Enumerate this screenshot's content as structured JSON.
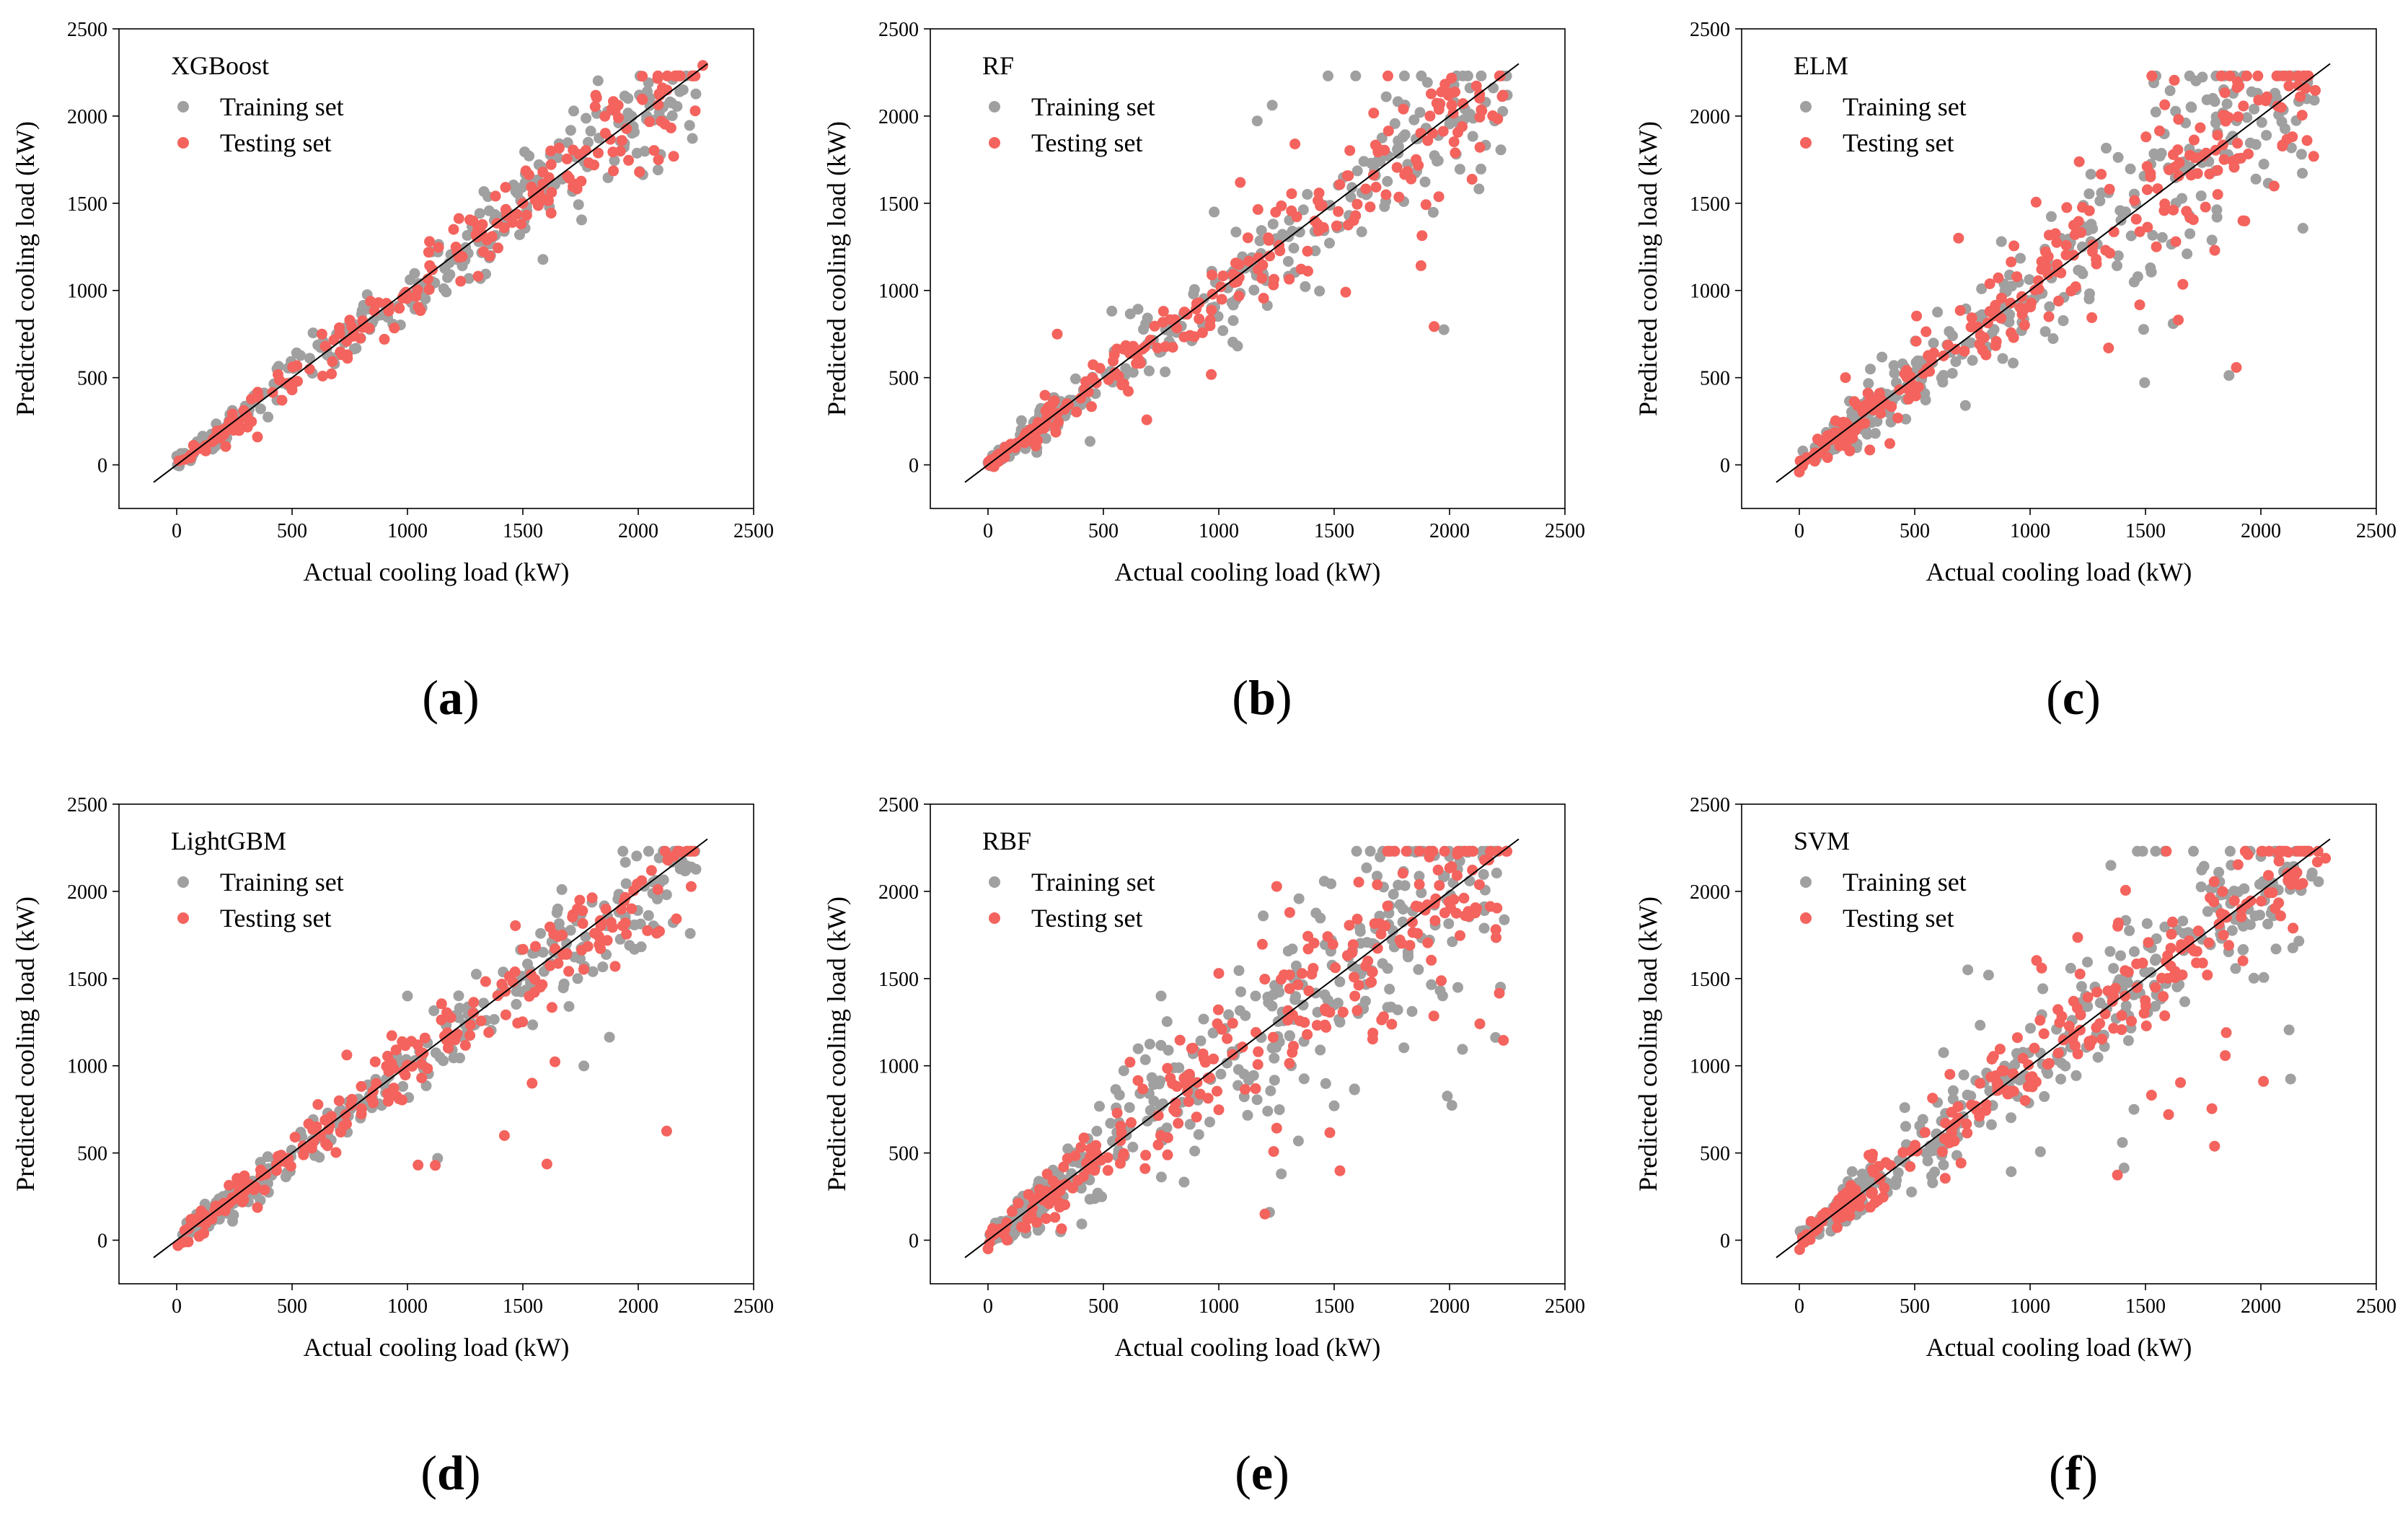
{
  "figure": {
    "colors": {
      "training": "#a0a0a0",
      "testing": "#f4635d",
      "line": "#000000"
    }
  },
  "chart_data": [
    {
      "type": "scatter",
      "panel": "(a)",
      "panel_letter": "a",
      "model": "XGBoost",
      "xlabel": "Actual cooling load (kW)",
      "ylabel": "Predicted cooling load (kW)",
      "xlim": [
        -250,
        2500
      ],
      "ylim": [
        -250,
        2500
      ],
      "xticks": [
        0,
        500,
        1000,
        1500,
        2000,
        2500
      ],
      "yticks": [
        0,
        500,
        1000,
        1500,
        2000,
        2500
      ],
      "reference_line": {
        "x": [
          -100,
          2300
        ],
        "y": [
          -100,
          2300
        ]
      },
      "legend": {
        "position": "top-left",
        "entries": [
          "Training set",
          "Testing set"
        ]
      },
      "point_model": {
        "count_train": 260,
        "count_test": 200,
        "spread_low": 0.07,
        "spread_high": 0.07,
        "bias": 0,
        "outlier_frac": 0.0,
        "seed": 11
      },
      "series": [
        {
          "name": "Training set",
          "color": "#a0a0a0",
          "points": [
            [
              100,
              110
            ],
            [
              310,
              290
            ],
            [
              520,
              560
            ],
            [
              800,
              790
            ],
            [
              1050,
              1040
            ],
            [
              1400,
              1390
            ],
            [
              1750,
              1760
            ],
            [
              2050,
              2060
            ],
            [
              2180,
              2140
            ]
          ]
        },
        {
          "name": "Testing set",
          "color": "#f4635d",
          "points": [
            [
              60,
              40
            ],
            [
              350,
              160
            ],
            [
              500,
              430
            ],
            [
              900,
              720
            ],
            [
              1200,
              1350
            ],
            [
              1500,
              1500
            ],
            [
              2100,
              1970
            ],
            [
              2280,
              2290
            ]
          ]
        }
      ]
    },
    {
      "type": "scatter",
      "panel": "(b)",
      "panel_letter": "b",
      "model": "RF",
      "xlabel": "Actual cooling load (kW)",
      "ylabel": "Predicted cooling load (kW)",
      "xlim": [
        -250,
        2500
      ],
      "ylim": [
        -250,
        2500
      ],
      "xticks": [
        0,
        500,
        1000,
        1500,
        2000,
        2500
      ],
      "yticks": [
        0,
        500,
        1000,
        1500,
        2000,
        2500
      ],
      "reference_line": {
        "x": [
          -100,
          2300
        ],
        "y": [
          -100,
          2300
        ]
      },
      "legend": {
        "position": "top-left",
        "entries": [
          "Training set",
          "Testing set"
        ]
      },
      "point_model": {
        "count_train": 260,
        "count_test": 220,
        "spread_low": 0.09,
        "spread_high": 0.1,
        "bias": -0.02,
        "outlier_frac": 0.03,
        "seed": 23
      },
      "series": [
        {
          "name": "Training set",
          "color": "#a0a0a0",
          "points": [
            [
              980,
              1450
            ],
            [
              1620,
              1560
            ],
            [
              2020,
              2080
            ],
            [
              2250,
              2120
            ],
            [
              750,
              650
            ]
          ]
        },
        {
          "name": "Testing set",
          "color": "#f4635d",
          "points": [
            [
              1330,
              1840
            ],
            [
              1800,
              2040
            ],
            [
              1550,
              990
            ],
            [
              300,
              750
            ],
            [
              2000,
              2130
            ]
          ]
        }
      ]
    },
    {
      "type": "scatter",
      "panel": "(c)",
      "panel_letter": "c",
      "model": "ELM",
      "xlabel": "Actual cooling load (kW)",
      "ylabel": "Predicted cooling load (kW)",
      "xlim": [
        -250,
        2500
      ],
      "ylim": [
        -250,
        2500
      ],
      "xticks": [
        0,
        500,
        1000,
        1500,
        2000,
        2500
      ],
      "yticks": [
        0,
        500,
        1000,
        1500,
        2000,
        2500
      ],
      "reference_line": {
        "x": [
          -100,
          2300
        ],
        "y": [
          -100,
          2300
        ]
      },
      "legend": {
        "position": "top-left",
        "entries": [
          "Training set",
          "Testing set"
        ]
      },
      "point_model": {
        "count_train": 320,
        "count_test": 260,
        "spread_low": 0.18,
        "spread_high": 0.12,
        "bias": 0.02,
        "outlier_frac": 0.04,
        "seed": 37
      },
      "series": [
        {
          "name": "Training set",
          "color": "#a0a0a0",
          "points": [
            [
              1620,
              810
            ],
            [
              1880,
              2130
            ],
            [
              2200,
              2170
            ],
            [
              250,
              120
            ]
          ]
        },
        {
          "name": "Testing set",
          "color": "#f4635d",
          "points": [
            [
              1340,
              670
            ],
            [
              1800,
              1230
            ],
            [
              690,
              1300
            ],
            [
              200,
              500
            ],
            [
              2200,
              1860
            ]
          ]
        }
      ]
    },
    {
      "type": "scatter",
      "panel": "(d)",
      "panel_letter": "d",
      "model": "LightGBM",
      "xlabel": "Actual cooling load (kW)",
      "ylabel": "Predicted cooling load (kW)",
      "xlim": [
        -250,
        2500
      ],
      "ylim": [
        -250,
        2500
      ],
      "xticks": [
        0,
        500,
        1000,
        1500,
        2000,
        2500
      ],
      "yticks": [
        0,
        500,
        1000,
        1500,
        2000,
        2500
      ],
      "reference_line": {
        "x": [
          -100,
          2300
        ],
        "y": [
          -100,
          2300
        ]
      },
      "legend": {
        "position": "top-left",
        "entries": [
          "Training set",
          "Testing set"
        ]
      },
      "point_model": {
        "count_train": 280,
        "count_test": 220,
        "spread_low": 0.09,
        "spread_high": 0.07,
        "bias": -0.01,
        "outlier_frac": 0.03,
        "seed": 53
      },
      "series": [
        {
          "name": "Training set",
          "color": "#a0a0a0",
          "points": [
            [
              2230,
              2140
            ],
            [
              1700,
              1340
            ],
            [
              1000,
              1400
            ]
          ]
        },
        {
          "name": "Testing set",
          "color": "#f4635d",
          "points": [
            [
              1420,
              600
            ],
            [
              1540,
              900
            ],
            [
              2080,
              1760
            ],
            [
              1900,
              1570
            ]
          ]
        }
      ]
    },
    {
      "type": "scatter",
      "panel": "(e)",
      "panel_letter": "e",
      "model": "RBF",
      "xlabel": "Actual cooling load (kW)",
      "ylabel": "Predicted cooling load (kW)",
      "xlim": [
        -250,
        2500
      ],
      "ylim": [
        -250,
        2500
      ],
      "xticks": [
        0,
        500,
        1000,
        1500,
        2000,
        2500
      ],
      "yticks": [
        0,
        500,
        1000,
        1500,
        2000,
        2500
      ],
      "reference_line": {
        "x": [
          -100,
          2300
        ],
        "y": [
          -100,
          2300
        ]
      },
      "legend": {
        "position": "top-left",
        "entries": [
          "Training set",
          "Testing set"
        ]
      },
      "point_model": {
        "count_train": 360,
        "count_test": 260,
        "spread_low": 0.22,
        "spread_high": 0.17,
        "bias": 0.0,
        "outlier_frac": 0.05,
        "seed": 71
      },
      "series": [
        {
          "name": "Training set",
          "color": "#a0a0a0",
          "points": [
            [
              2000,
              2200
            ],
            [
              1500,
              770
            ],
            [
              750,
              1400
            ],
            [
              1220,
              160
            ]
          ]
        },
        {
          "name": "Testing set",
          "color": "#f4635d",
          "points": [
            [
              1200,
              150
            ],
            [
              1000,
              1530
            ],
            [
              2170,
              2180
            ],
            [
              0,
              -50
            ]
          ]
        }
      ]
    },
    {
      "type": "scatter",
      "panel": "(f)",
      "panel_letter": "f",
      "model": "SVM",
      "xlabel": "Actual cooling load (kW)",
      "ylabel": "Predicted cooling load (kW)",
      "xlim": [
        -250,
        2500
      ],
      "ylim": [
        -250,
        2500
      ],
      "xticks": [
        0,
        500,
        1000,
        1500,
        2000,
        2500
      ],
      "yticks": [
        0,
        500,
        1000,
        1500,
        2000,
        2500
      ],
      "reference_line": {
        "x": [
          -100,
          2300
        ],
        "y": [
          -100,
          2300
        ]
      },
      "legend": {
        "position": "top-left",
        "entries": [
          "Training set",
          "Testing set"
        ]
      },
      "point_model": {
        "count_train": 340,
        "count_test": 260,
        "spread_low": 0.16,
        "spread_high": 0.09,
        "bias": 0.0,
        "outlier_frac": 0.05,
        "seed": 89
      },
      "series": [
        {
          "name": "Training set",
          "color": "#a0a0a0",
          "points": [
            [
              730,
              1550
            ],
            [
              820,
              1520
            ],
            [
              1450,
              750
            ],
            [
              2000,
              2200
            ],
            [
              1400,
              560
            ]
          ]
        },
        {
          "name": "Testing set",
          "color": "#f4635d",
          "points": [
            [
              1050,
              1560
            ],
            [
              1600,
              720
            ],
            [
              1850,
              1190
            ],
            [
              2280,
              2190
            ],
            [
              1380,
              1800
            ]
          ]
        }
      ]
    }
  ]
}
